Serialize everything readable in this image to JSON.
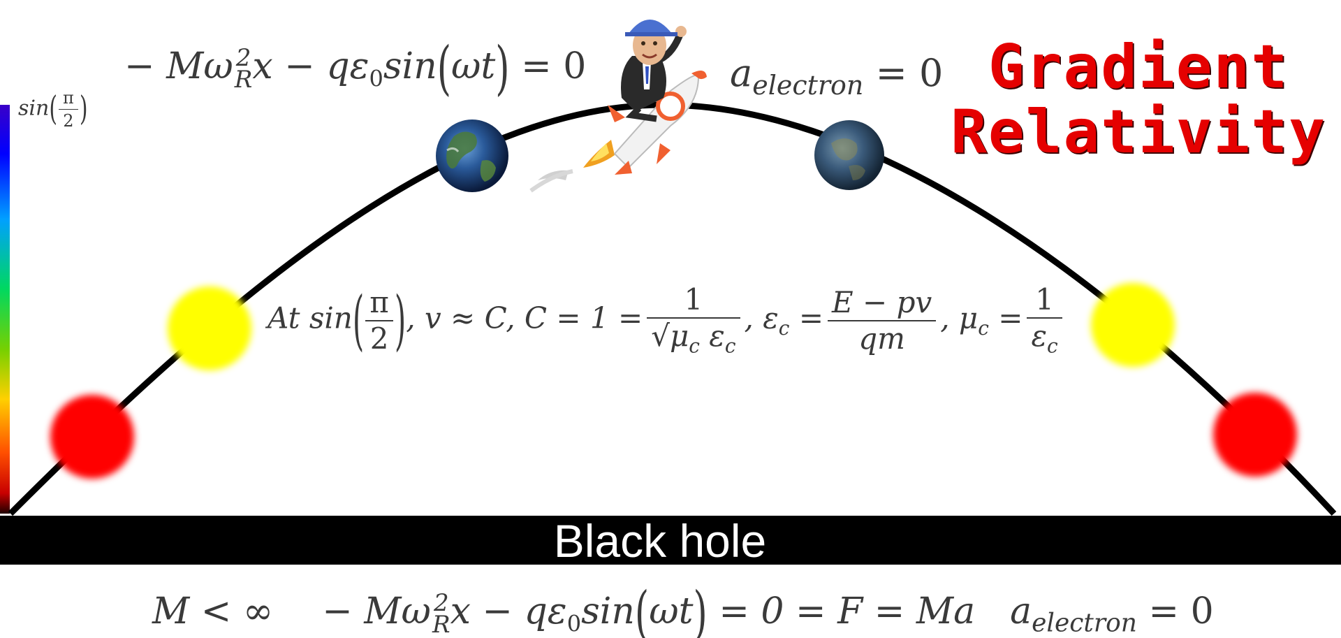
{
  "colorbar": {
    "top_label_fn": "sin",
    "top_label_num": "π",
    "top_label_den": "2"
  },
  "equations": {
    "top_left_a": "− Mω",
    "top_left_sup": "2",
    "top_left_sub": "R",
    "top_left_b": "x − qε",
    "top_left_sub0": "0",
    "top_left_c": "sin",
    "top_left_d": "ωt",
    "top_left_e": "= 0",
    "top_right_a": "a",
    "top_right_sub": "electron",
    "top_right_b": "= 0",
    "middle_a": "At sin",
    "middle_pi": "π",
    "middle_two": "2",
    "middle_b": ", v ≈ C, C = 1 =",
    "middle_frac1_num": "1",
    "middle_frac1_den": "√μ",
    "middle_frac1_den_sub": "c",
    "middle_frac1_den_b": " ε",
    "middle_frac1_den_sub2": "c",
    "middle_c": ", ε",
    "middle_c_sub": "c",
    "middle_d": "=",
    "middle_frac2_num": "E − pv",
    "middle_frac2_den": "qm",
    "middle_e": ", μ",
    "middle_e_sub": "c",
    "middle_f": "=",
    "middle_frac3_num": "1",
    "middle_frac3_den": "ε",
    "middle_frac3_den_sub": "c",
    "bottom_a": "M < ∞",
    "bottom_b": "− Mω",
    "bottom_sup": "2",
    "bottom_sub": "R",
    "bottom_c": "x − qε",
    "bottom_sub0": "0",
    "bottom_d": "sin",
    "bottom_e": "ωt",
    "bottom_f": "= 0 = F = Ma",
    "bottom_g": "a",
    "bottom_g_sub": "electron",
    "bottom_h": "= 0"
  },
  "title": {
    "line1": "Gradient",
    "line2": "Relativity"
  },
  "black_hole": {
    "label": "Black hole"
  },
  "colors": {
    "curve": "#000000",
    "red_ball": "#ff0000",
    "yellow_ball": "#ffff00",
    "title": "#e50000",
    "equation_text": "#3a3a3a"
  }
}
